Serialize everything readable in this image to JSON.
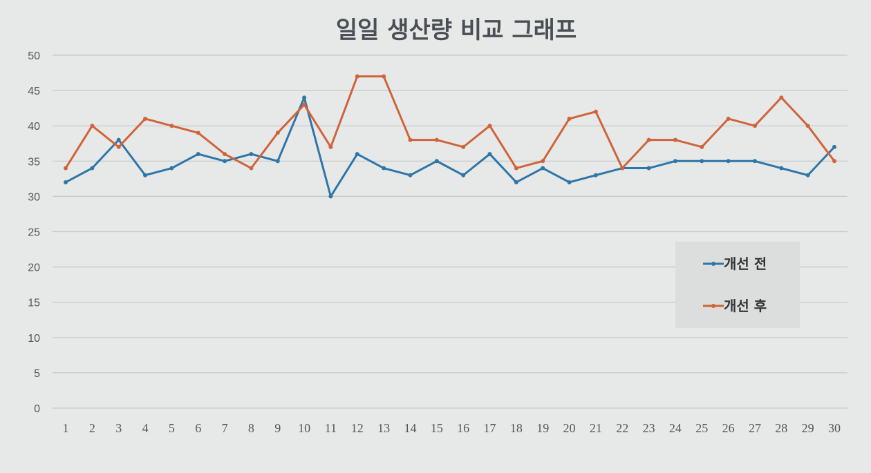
{
  "chart_data": {
    "type": "line",
    "title": "일일 생산량 비교 그래프",
    "xlabel": "",
    "ylabel": "",
    "ylim": [
      0,
      50
    ],
    "yticks": [
      0,
      5,
      10,
      15,
      20,
      25,
      30,
      35,
      40,
      45,
      50
    ],
    "grid": true,
    "legend_position": "right",
    "x": [
      1,
      2,
      3,
      4,
      5,
      6,
      7,
      8,
      9,
      10,
      11,
      12,
      13,
      14,
      15,
      16,
      17,
      18,
      19,
      20,
      21,
      22,
      23,
      24,
      25,
      26,
      27,
      28,
      29,
      30
    ],
    "series": [
      {
        "name": "개선 전",
        "color": "#2e75a8",
        "values": [
          32,
          34,
          38,
          33,
          34,
          36,
          35,
          36,
          35,
          44,
          30,
          36,
          34,
          33,
          35,
          33,
          36,
          32,
          34,
          32,
          33,
          34,
          34,
          35,
          35,
          35,
          35,
          34,
          33,
          37
        ]
      },
      {
        "name": "개선 후",
        "color": "#d0633a",
        "values": [
          34,
          40,
          37,
          41,
          40,
          39,
          36,
          34,
          39,
          43,
          37,
          47,
          47,
          38,
          38,
          37,
          40,
          34,
          35,
          41,
          42,
          34,
          38,
          38,
          37,
          41,
          40,
          44,
          40,
          35
        ]
      }
    ]
  }
}
